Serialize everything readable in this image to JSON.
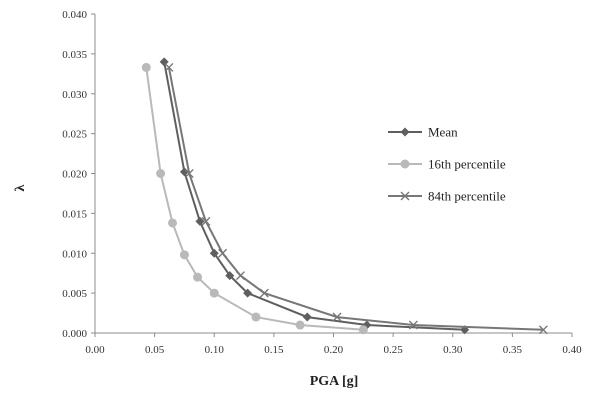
{
  "chart_data": {
    "type": "line",
    "title": "",
    "xlabel": "PGA [g]",
    "ylabel": "λ",
    "xlim": [
      0.0,
      0.4
    ],
    "ylim": [
      0.0,
      0.04
    ],
    "x_ticks": [
      "0.00",
      "0.05",
      "0.10",
      "0.15",
      "0.20",
      "0.25",
      "0.30",
      "0.35",
      "0.40"
    ],
    "y_ticks": [
      "0.000",
      "0.005",
      "0.010",
      "0.015",
      "0.020",
      "0.025",
      "0.030",
      "0.035",
      "0.040"
    ],
    "grid": false,
    "legend_position": "right",
    "series": [
      {
        "name": "Mean",
        "color": "#5f5f5f",
        "marker": "diamond",
        "points": [
          [
            0.058,
            0.034
          ],
          [
            0.075,
            0.0202
          ],
          [
            0.088,
            0.014
          ],
          [
            0.1,
            0.01
          ],
          [
            0.113,
            0.0072
          ],
          [
            0.128,
            0.005
          ],
          [
            0.178,
            0.002
          ],
          [
            0.228,
            0.001
          ],
          [
            0.31,
            0.0004
          ]
        ]
      },
      {
        "name": "16th percentile",
        "color": "#b9b9b9",
        "marker": "circle",
        "points": [
          [
            0.043,
            0.0333
          ],
          [
            0.055,
            0.02
          ],
          [
            0.065,
            0.0138
          ],
          [
            0.075,
            0.0098
          ],
          [
            0.086,
            0.007
          ],
          [
            0.1,
            0.005
          ],
          [
            0.135,
            0.002
          ],
          [
            0.172,
            0.001
          ],
          [
            0.225,
            0.0004
          ]
        ]
      },
      {
        "name": "84th percentile",
        "color": "#777777",
        "marker": "x",
        "points": [
          [
            0.062,
            0.0333
          ],
          [
            0.079,
            0.02
          ],
          [
            0.093,
            0.014
          ],
          [
            0.107,
            0.01
          ],
          [
            0.122,
            0.0072
          ],
          [
            0.142,
            0.005
          ],
          [
            0.203,
            0.002
          ],
          [
            0.267,
            0.001
          ],
          [
            0.376,
            0.0004
          ]
        ]
      }
    ]
  }
}
